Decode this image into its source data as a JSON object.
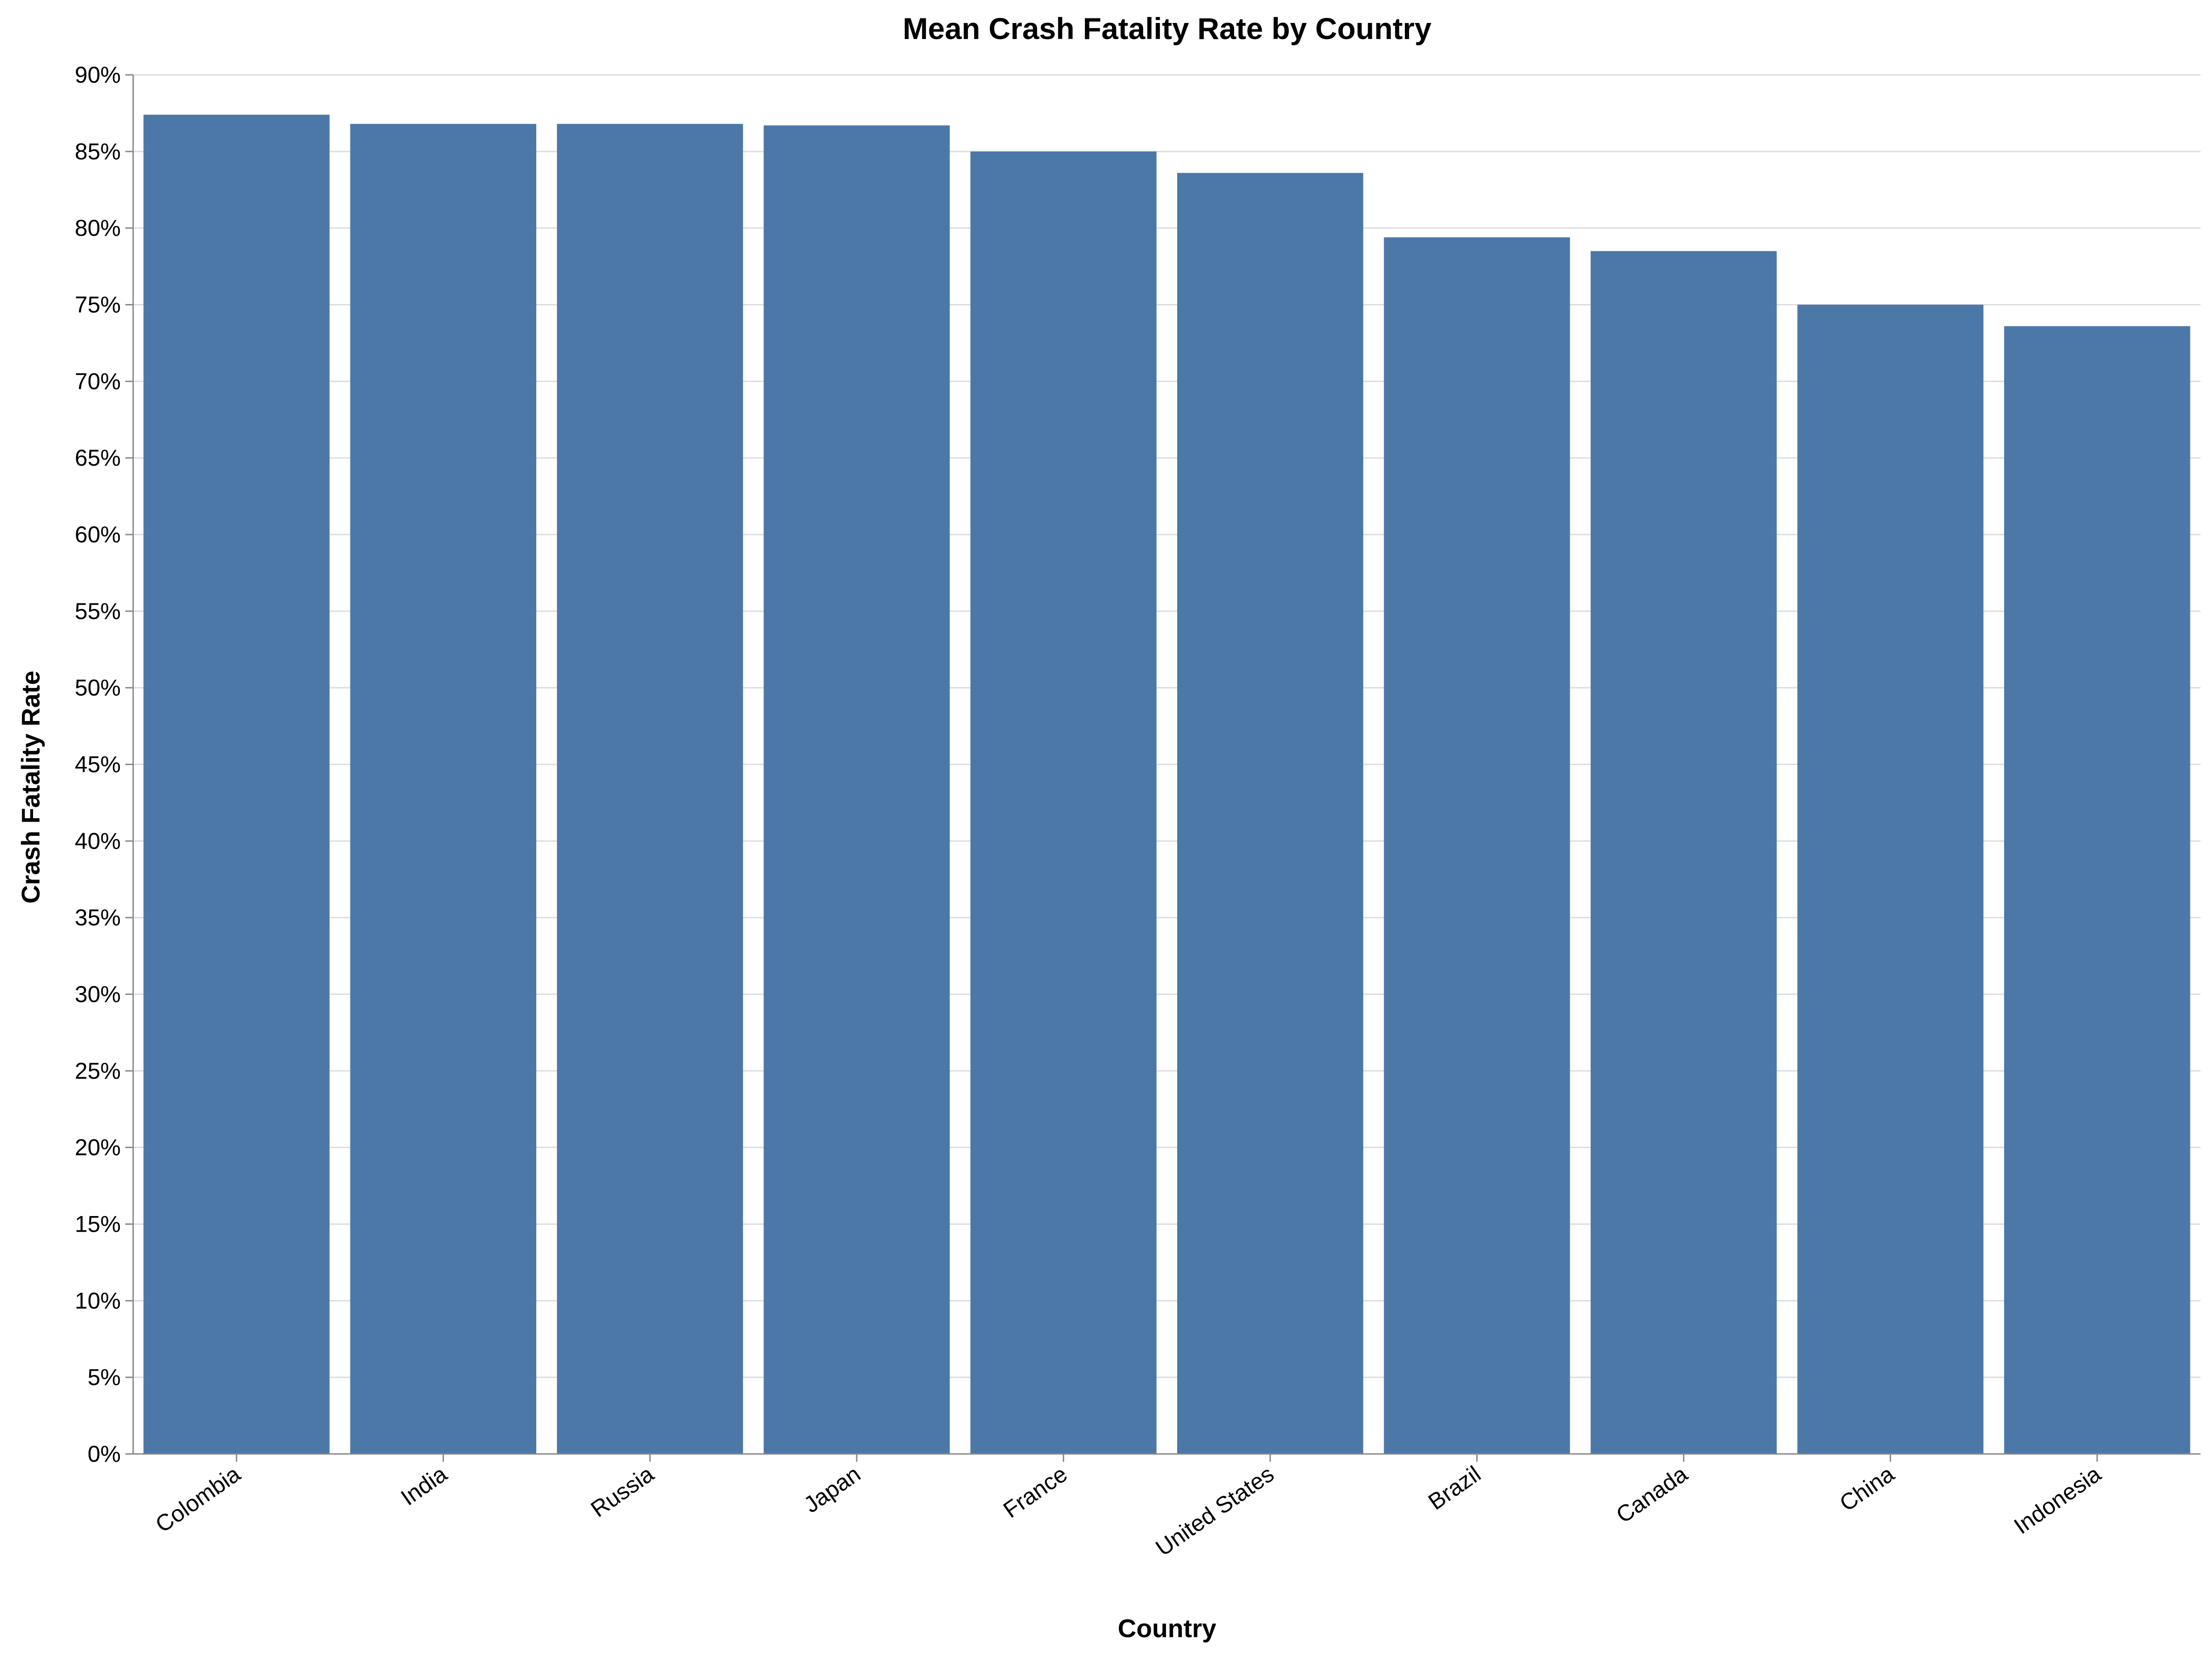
{
  "chart_data": {
    "type": "bar",
    "title": "Mean Crash Fatality Rate by Country",
    "xlabel": "Country",
    "ylabel": "Crash Fatality Rate",
    "categories": [
      "Colombia",
      "India",
      "Russia",
      "Japan",
      "France",
      "United States",
      "Brazil",
      "Canada",
      "China",
      "Indonesia"
    ],
    "values": [
      0.874,
      0.868,
      0.868,
      0.867,
      0.85,
      0.836,
      0.794,
      0.785,
      0.75,
      0.736
    ],
    "ylim": [
      0,
      0.9
    ],
    "yticks": [
      "0%",
      "5%",
      "10%",
      "15%",
      "20%",
      "25%",
      "30%",
      "35%",
      "40%",
      "45%",
      "50%",
      "55%",
      "60%",
      "65%",
      "70%",
      "75%",
      "80%",
      "85%",
      "90%"
    ],
    "grid": true,
    "legend": "none",
    "colors": {
      "bar": "#4c78a8",
      "grid": "#dddddd",
      "axis": "#888888"
    }
  }
}
